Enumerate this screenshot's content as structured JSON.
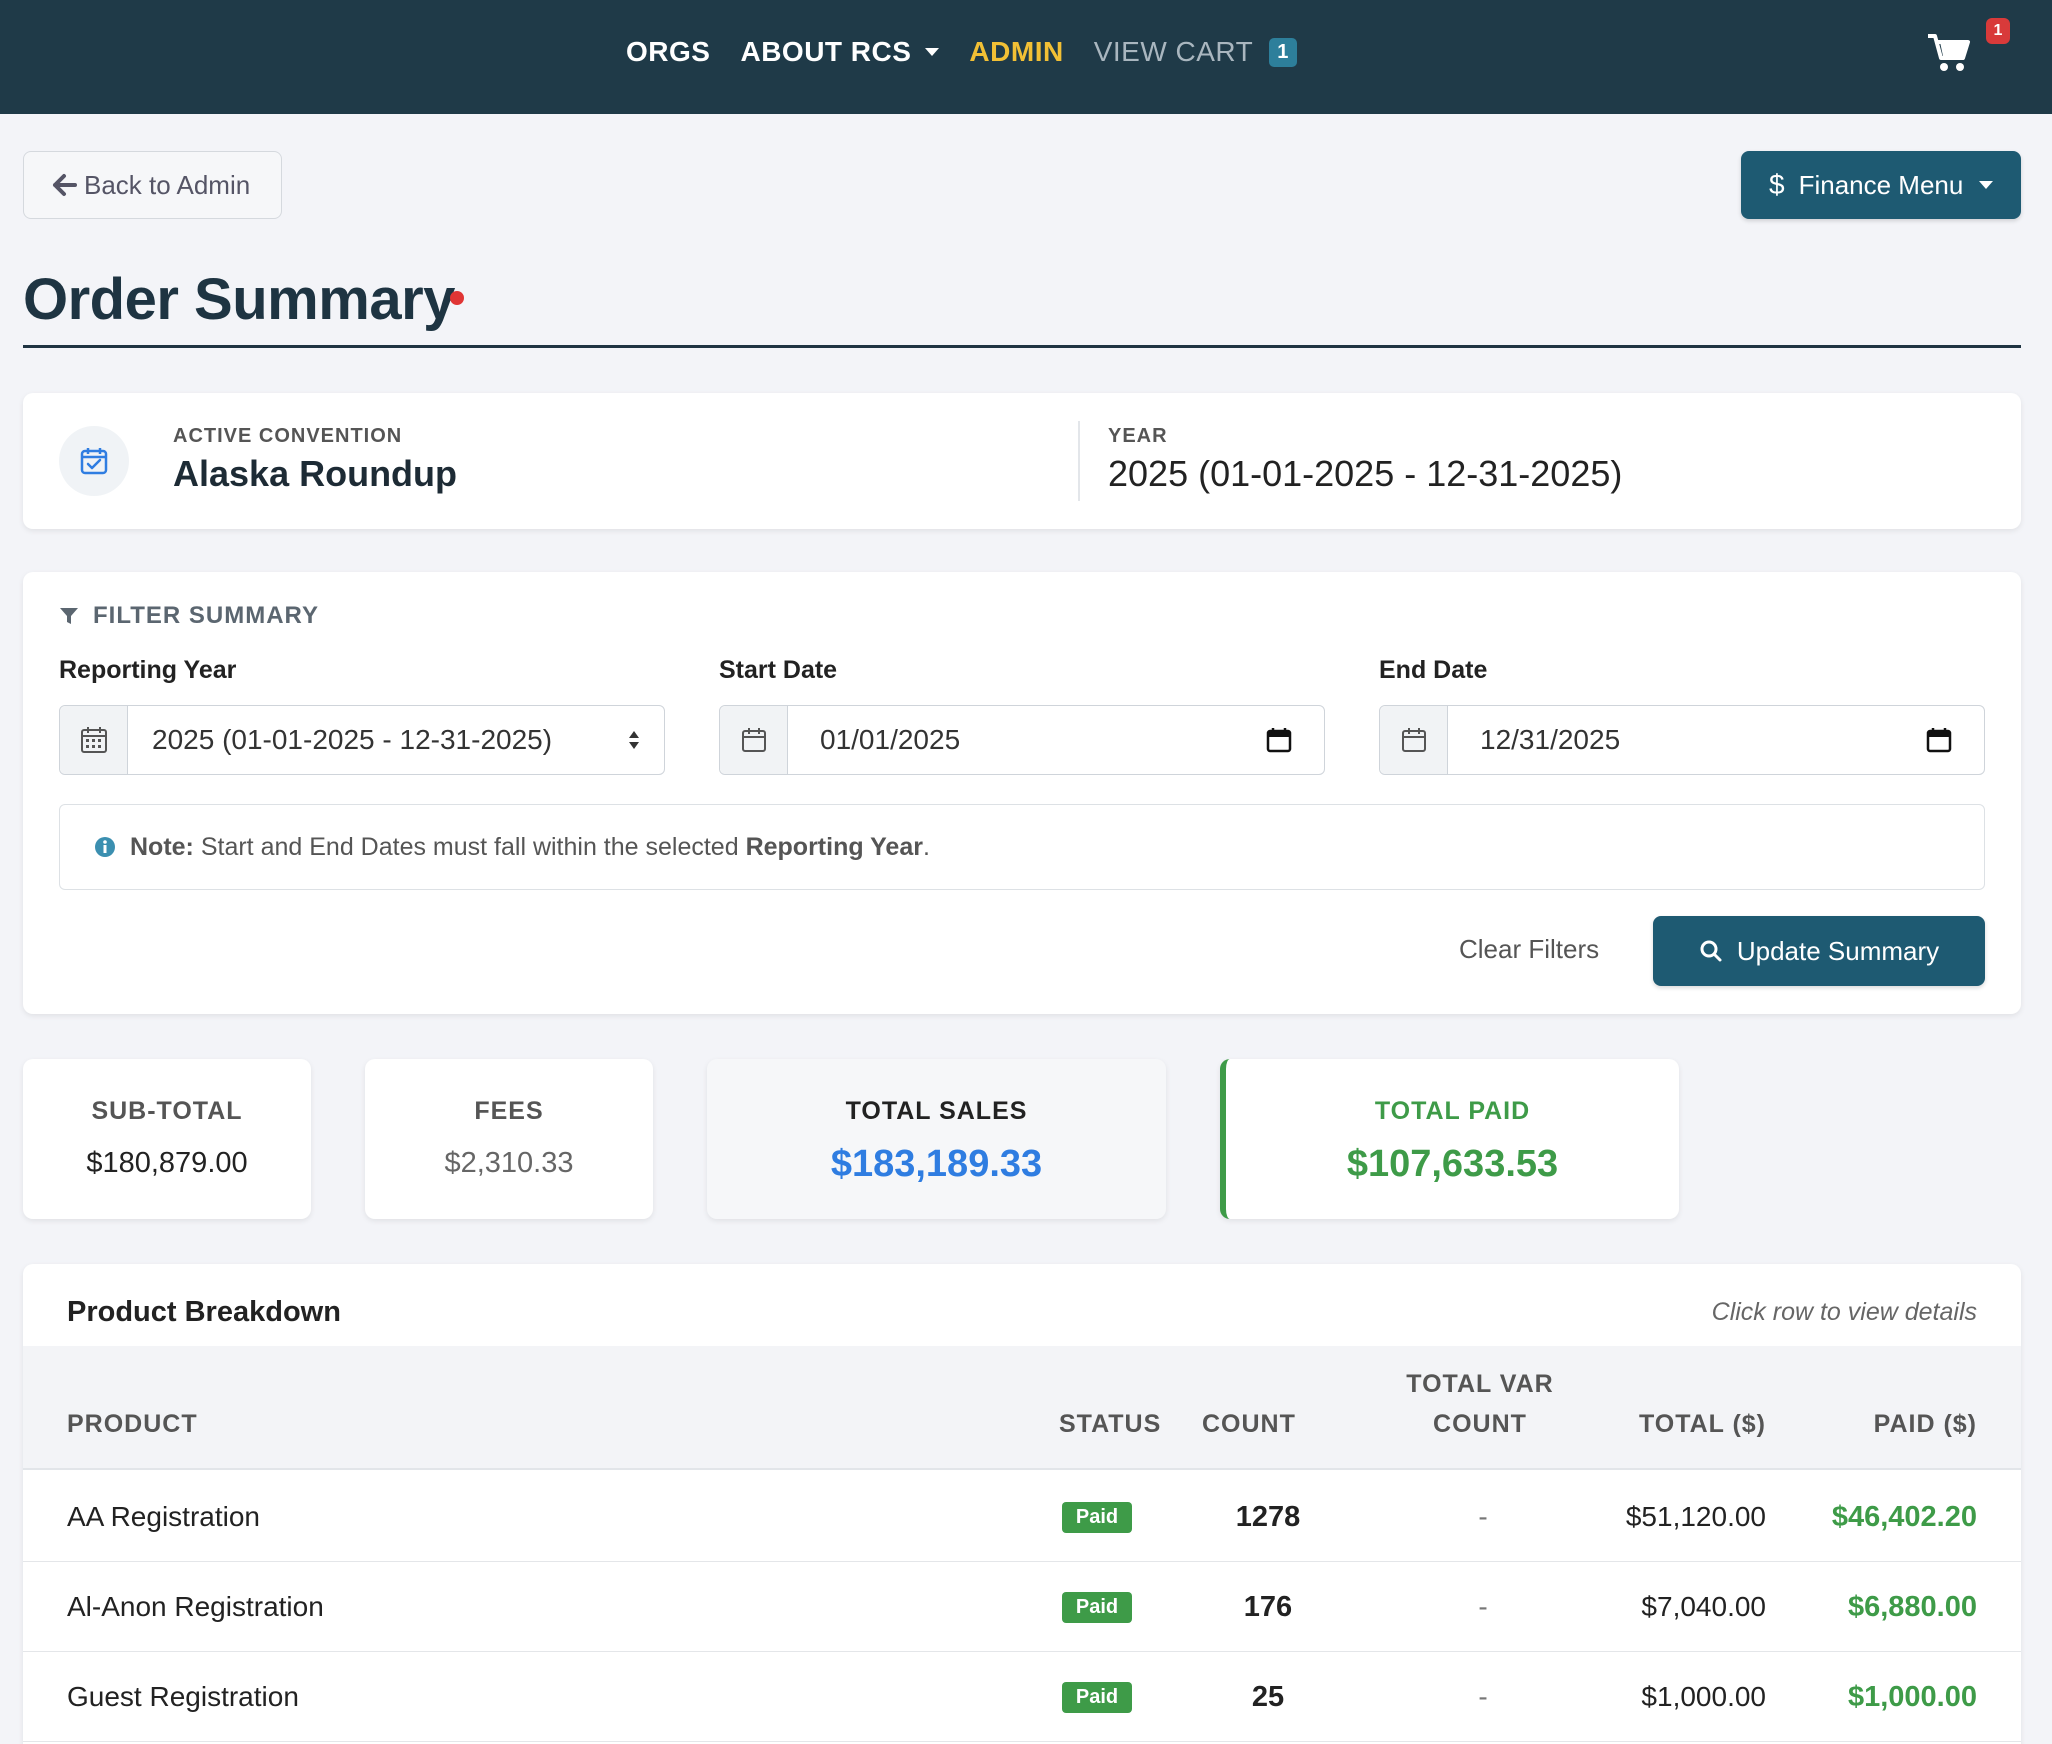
{
  "nav": {
    "orgs": "ORGS",
    "about": "ABOUT RCS",
    "admin": "ADMIN",
    "view_cart": "VIEW CART",
    "cart_count": "1",
    "cart_badge": "1"
  },
  "actions": {
    "back": "Back to Admin",
    "finance_menu": "Finance Menu"
  },
  "page": {
    "title": "Order Summary"
  },
  "convention": {
    "label": "ACTIVE CONVENTION",
    "name": "Alaska Roundup",
    "year_label": "YEAR",
    "year_value": "2025 (01-01-2025 - 12-31-2025)"
  },
  "filter": {
    "heading": "FILTER SUMMARY",
    "reporting_year_label": "Reporting Year",
    "reporting_year_value": "2025 (01-01-2025 - 12-31-2025)",
    "start_date_label": "Start Date",
    "start_date_value": "01/01/2025",
    "end_date_label": "End Date",
    "end_date_value": "12/31/2025",
    "note_prefix": "Note:",
    "note_text": " Start and End Dates must fall within the selected ",
    "note_strong": "Reporting Year",
    "note_suffix": ".",
    "clear": "Clear Filters",
    "update": "Update Summary"
  },
  "stats": {
    "subtotal_label": "SUB-TOTAL",
    "subtotal_value": "$180,879.00",
    "fees_label": "FEES",
    "fees_value": "$2,310.33",
    "sales_label": "TOTAL SALES",
    "sales_value": "$183,189.33",
    "paid_label": "TOTAL PAID",
    "paid_value": "$107,633.53"
  },
  "breakdown": {
    "title": "Product Breakdown",
    "hint": "Click row to view details",
    "headers": {
      "product": "PRODUCT",
      "status": "STATUS",
      "count": "COUNT",
      "var_line1": "TOTAL VAR",
      "var_line2": "COUNT",
      "total": "TOTAL ($)",
      "paid": "PAID ($)"
    },
    "rows": [
      {
        "product": "AA Registration",
        "status": "Paid",
        "count": "1278",
        "var": "-",
        "total": "$51,120.00",
        "paid": "$46,402.20"
      },
      {
        "product": "Al-Anon Registration",
        "status": "Paid",
        "count": "176",
        "var": "-",
        "total": "$7,040.00",
        "paid": "$6,880.00"
      },
      {
        "product": "Guest Registration",
        "status": "Paid",
        "count": "25",
        "var": "-",
        "total": "$1,000.00",
        "paid": "$1,000.00"
      }
    ]
  },
  "icons": {
    "cart": "shopping-cart-icon",
    "back": "arrow-left-icon",
    "calendar_check": "calendar-check-icon",
    "filter": "filter-icon",
    "calendar": "calendar-icon",
    "info": "info-circle-icon",
    "search": "search-icon"
  },
  "colors": {
    "nav_bg": "#1f3a48",
    "primary": "#1e5a72",
    "admin_accent": "#f2c035",
    "sales_blue": "#2f7de1",
    "paid_green": "#3e9b48",
    "alert_red": "#d83a3a"
  }
}
